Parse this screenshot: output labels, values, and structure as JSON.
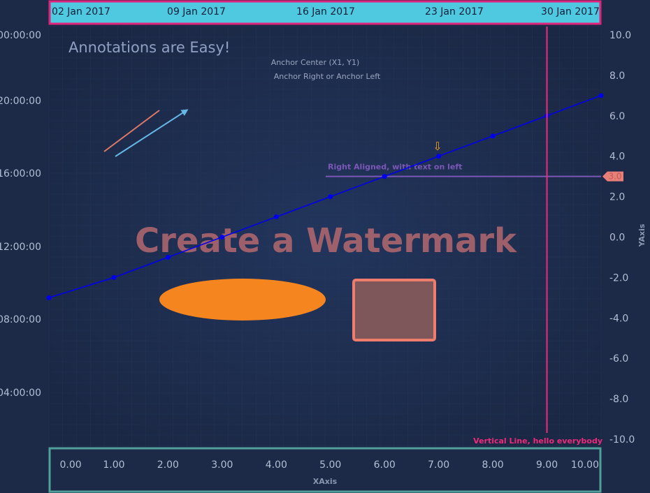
{
  "chart_data": {
    "type": "line",
    "title": "",
    "xlabel": "XAxis",
    "ylabel": "YAxis",
    "xlim": [
      -0.2,
      10.0
    ],
    "ylim": [
      -10.0,
      10.0
    ],
    "x_ticks": [
      "0.00",
      "1.00",
      "2.00",
      "3.00",
      "4.00",
      "5.00",
      "6.00",
      "7.00",
      "8.00",
      "9.00",
      "10.00"
    ],
    "y_ticks": [
      "10.0",
      "8.0",
      "6.0",
      "4.0",
      "2.0",
      "0.0",
      "-2.0",
      "-4.0",
      "-6.0",
      "-8.0",
      "-10.0"
    ],
    "top_axis_ticks": [
      "02 Jan 2017",
      "09 Jan 2017",
      "16 Jan 2017",
      "23 Jan 2017",
      "30 Jan 2017"
    ],
    "left_axis_ticks": [
      "00:00:00",
      "20:00:00",
      "16:00:00",
      "12:00:00",
      "08:00:00",
      "04:00:00"
    ],
    "series": [
      {
        "x": [
          -0.2,
          1,
          2,
          3,
          4,
          5,
          6,
          7,
          8,
          9,
          10
        ],
        "y": [
          -3.0,
          -2.0,
          -1.0,
          0.0,
          1.0,
          2.0,
          3.0,
          4.0,
          5.0,
          6.0,
          7.0
        ]
      }
    ],
    "annotations": {
      "title_text": "Annotations are Easy!",
      "anchor_center": "Anchor Center (X1, Y1)",
      "anchor_right_left": "Anchor Right  or Anchor Left",
      "watermark": "Create a Watermark",
      "hline_label": "Right Aligned, with text on left",
      "hline_value": 3.0,
      "hline_axis_label": "3.0",
      "vline_label": "Vertical Line, hello everybody",
      "vline_x": 9.0,
      "arrow_marker": "⇩"
    },
    "grid": true,
    "colors": {
      "line": "#0000ee",
      "hline": "#7b57b8",
      "vline": "#ee2a7b",
      "ellipse": "#f5851f",
      "rect_fill": "#7e575b",
      "rect_stroke": "#ef7c6c",
      "arrow": "#65b7e6",
      "line_annotation": "#e07a68",
      "top_axis_bg": "#4ec9df",
      "top_axis_border": "#e0247b",
      "bottom_axis_border": "#4f9f9b",
      "watermark": "#b4686f",
      "marker": "#f7a21b"
    }
  }
}
